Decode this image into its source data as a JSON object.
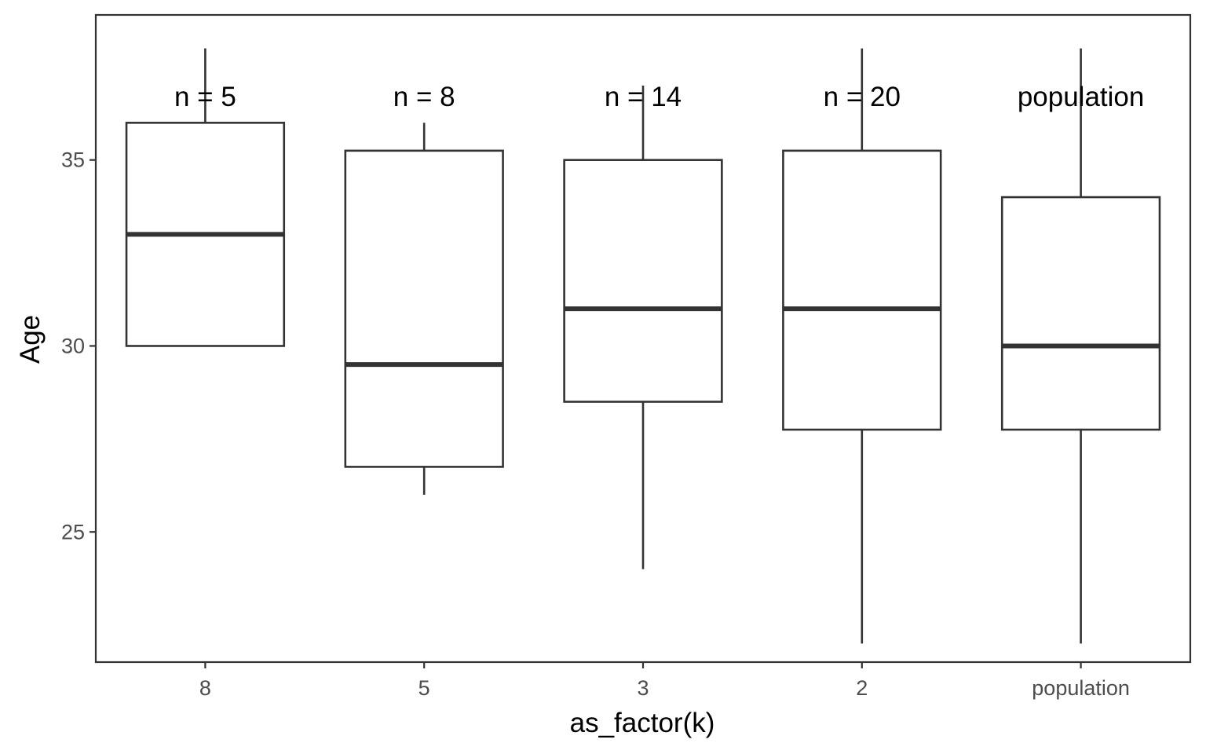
{
  "chart_data": {
    "type": "boxplot",
    "xlabel": "as_factor(k)",
    "ylabel": "Age",
    "ylim": [
      21.5,
      38.9
    ],
    "yticks": [
      25,
      30,
      35
    ],
    "grid": false,
    "categories": [
      "8",
      "5",
      "3",
      "2",
      "population"
    ],
    "annotations": [
      "n = 5",
      "n = 8",
      "n = 14",
      "n = 20",
      "population"
    ],
    "annotation_y": 36.7,
    "boxes": [
      {
        "category": "8",
        "whisker_low": 30.0,
        "q1": 30.0,
        "median": 33.0,
        "q3": 36.0,
        "whisker_high": 38.0
      },
      {
        "category": "5",
        "whisker_low": 26.0,
        "q1": 26.75,
        "median": 29.5,
        "q3": 35.25,
        "whisker_high": 36.0
      },
      {
        "category": "3",
        "whisker_low": 24.0,
        "q1": 28.5,
        "median": 31.0,
        "q3": 35.0,
        "whisker_high": 37.0
      },
      {
        "category": "2",
        "whisker_low": 22.0,
        "q1": 27.75,
        "median": 31.0,
        "q3": 35.25,
        "whisker_high": 38.0
      },
      {
        "category": "population",
        "whisker_low": 22.0,
        "q1": 27.75,
        "median": 30.0,
        "q3": 34.0,
        "whisker_high": 38.0
      }
    ],
    "colors": {
      "line": "#333333",
      "fill": "#ffffff",
      "tick_text": "#4d4d4d",
      "title_text": "#000000"
    }
  }
}
